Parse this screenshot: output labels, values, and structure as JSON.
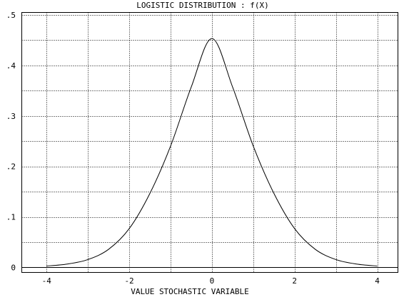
{
  "chart_data": {
    "type": "line",
    "title": "LOGISTIC DISTRIBUTION : f(X)",
    "xlabel": "VALUE STOCHASTIC VARIABLE",
    "ylabel": "",
    "xlim": [
      -4.6,
      4.5
    ],
    "ylim": [
      -0.01,
      0.505
    ],
    "x_ticks": [
      {
        "value": -4,
        "label": "-4"
      },
      {
        "value": -2,
        "label": "-2"
      },
      {
        "value": 0,
        "label": "0"
      },
      {
        "value": 2,
        "label": "2"
      },
      {
        "value": 4,
        "label": "4"
      }
    ],
    "x_grid": [
      -4,
      -3,
      -2,
      -1,
      0,
      1,
      2,
      3,
      4
    ],
    "y_ticks": [
      {
        "value": 0,
        "label": "0"
      },
      {
        "value": 0.1,
        "label": ".1"
      },
      {
        "value": 0.2,
        "label": ".2"
      },
      {
        "value": 0.3,
        "label": ".3"
      },
      {
        "value": 0.4,
        "label": ".4"
      },
      {
        "value": 0.5,
        "label": ".5"
      }
    ],
    "y_grid": [
      0.05,
      0.1,
      0.15,
      0.2,
      0.25,
      0.3,
      0.35,
      0.4,
      0.45,
      0.5
    ],
    "grid": true,
    "series": [
      {
        "x": [
          -4,
          -3.5,
          -3,
          -2.5,
          -2,
          -1.5,
          -1,
          -0.5,
          0,
          0.5,
          1,
          1.5,
          2,
          2.5,
          3,
          3.5,
          4
        ],
        "values": [
          0.0027,
          0.0066,
          0.0155,
          0.0358,
          0.0768,
          0.1466,
          0.2403,
          0.3573,
          0.4534,
          0.3573,
          0.2403,
          0.1466,
          0.0768,
          0.0358,
          0.0155,
          0.0066,
          0.0027
        ]
      }
    ]
  }
}
